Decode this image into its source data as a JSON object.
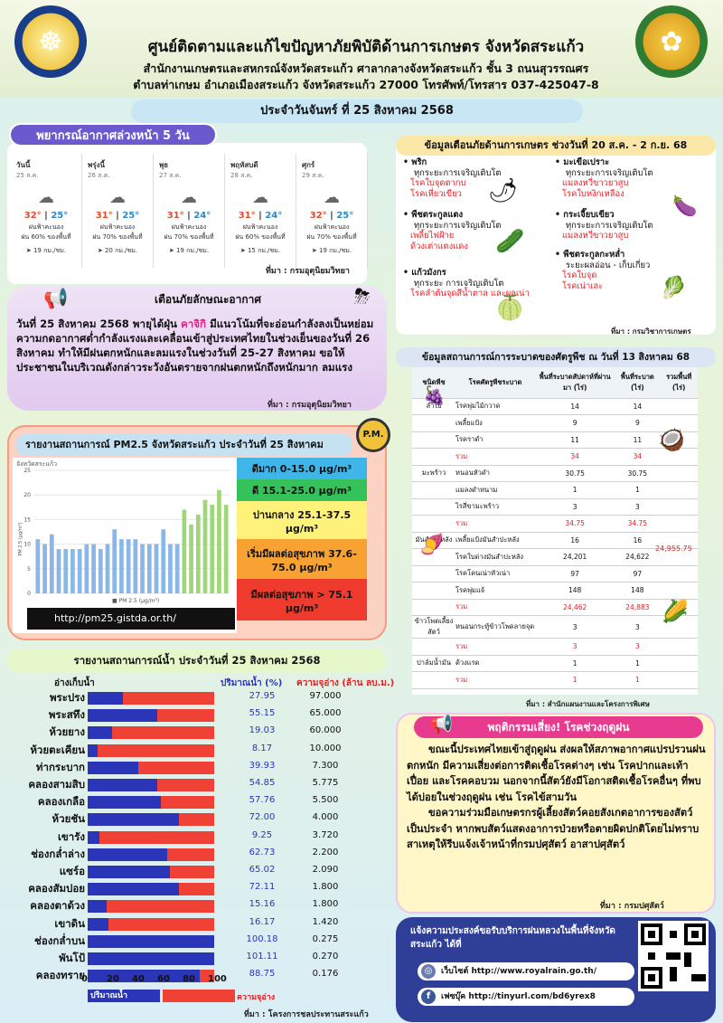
{
  "header": {
    "title": "ศูนย์ติดตามและแก้ไขปัญหาภัยพิบัติด้านการเกษตร จังหวัดสระแก้ว",
    "line1": "สำนักงานเกษตรและสหกรณ์จังหวัดสระแก้ว ศาลากลางจังหวัดสระแก้ว ชั้น 3 ถนนสุวรรณศร",
    "line2": "ตำบลท่าเกษม อำเภอเมืองสระแก้ว จังหวัดสระแก้ว 27000 โทรศัพท์/โทรสาร 037-425047-8"
  },
  "date": "ประจำวันจันทร์ ที่ 25 สิงหาคม 2568",
  "forecast": {
    "title": "พยากรณ์อากาศล่วงหน้า 5 วัน",
    "source": "ที่มา : กรมอุตุนิยมวิทยา",
    "days": [
      {
        "name": "วันนี้",
        "date": "25 ส.ค.",
        "hi": "32°",
        "lo": "25°",
        "desc": "ฝนฟ้าคะนอง",
        "rain": "ฝน 60% ของพื้นที่",
        "wind": "19 กม./ชม."
      },
      {
        "name": "พรุ่งนี้",
        "date": "26 ส.ค.",
        "hi": "31°",
        "lo": "25°",
        "desc": "ฝนฟ้าคะนอง",
        "rain": "ฝน 70% ของพื้นที่",
        "wind": "20 กม./ชม."
      },
      {
        "name": "พุธ",
        "date": "27 ส.ค.",
        "hi": "31°",
        "lo": "24°",
        "desc": "ฝนฟ้าคะนอง",
        "rain": "ฝน 70% ของพื้นที่",
        "wind": "19 กม./ชม."
      },
      {
        "name": "พฤหัสบดี",
        "date": "28 ส.ค.",
        "hi": "31°",
        "lo": "24°",
        "desc": "ฝนฟ้าคะนอง",
        "rain": "ฝน 60% ของพื้นที่",
        "wind": "15 กม./ชม."
      },
      {
        "name": "ศุกร์",
        "date": "29 ส.ค.",
        "hi": "32°",
        "lo": "25°",
        "desc": "ฝนฟ้าคะนอง",
        "rain": "ฝน 70% ของพื้นที่",
        "wind": "19 กม./ชม."
      }
    ]
  },
  "warning": {
    "title": "เตือนภัยลักษณะอากาศ",
    "pre": "วันที่ 25 สิงหาคม 2568 พายุได้ฝุ่น ",
    "storm": "คาจิกิ",
    "post": " มีแนวโน้มที่จะอ่อนกำลังลงเป็นหย่อมความกดอากาศต่ำกำลังแรงและเคลื่อนเข้าสู่ประเทศไทยในช่วงเย็นของวันที่ 26 สิงหาคม ทำให้มีฝนตกหนักและลมแรงในช่วงวันที่ 25-27 สิงหาคม ขอให้ประชาชนในบริเวณดังกล่าวระวังอันตรายจากฝนตกหนักถึงหนักมาก ลมแรง",
    "source": "ที่มา : กรมอุตุนิยมวิทยา"
  },
  "pm": {
    "title": "รายงานสถานการณ์ PM2.5 จังหวัดสระแก้ว ประจำวันที่ 25 สิงหาคม 2568",
    "badge": "P.M.",
    "url": "http://pm25.gistda.or.th/",
    "chart_caption": "จังหวัดสระแก้ว",
    "legend": "PM 2.5 (μg/m³)",
    "levels": [
      {
        "label": "ดีมาก 0-15.0 μg/m³",
        "color": "#3fb6ea"
      },
      {
        "label": "ดี 15.1-25.0 μg/m³",
        "color": "#36c25a"
      },
      {
        "label": "ปานกลาง 25.1-37.5 μg/m³",
        "color": "#fff27a"
      },
      {
        "label": "เริ่มมีผลต่อสุขภาพ 37.6-75.0 μg/m³",
        "color": "#f7a233"
      },
      {
        "label": "มีผลต่อสุขภาพ > 75.1 μg/m³",
        "color": "#ef3b2d"
      }
    ]
  },
  "chart_data": {
    "type": "bar",
    "title": "จังหวัดสระแก้ว",
    "ylim": [
      0,
      25
    ],
    "ylabel": "PM 2.5 (µg/m³)",
    "yticks": [
      0,
      5,
      10,
      15,
      20,
      25
    ],
    "values": [
      11,
      10,
      12,
      9,
      9,
      9,
      9,
      10,
      10,
      9,
      10,
      13,
      11,
      11,
      11,
      10,
      10,
      10,
      13,
      10,
      10,
      17,
      14,
      16,
      19,
      18,
      21,
      18
    ],
    "series": [
      {
        "name": "PM 2.5 (µg/m³)"
      }
    ]
  },
  "water": {
    "title": "รายงานสถานการณ์น้ำ ประจำวันที่ 25 สิงหาคม 2568",
    "col_name": "อ่างเก็บน้ำ",
    "col_pct": "ปริมาณน้ำ (%)",
    "col_cap": "ความจุอ่าง (ล้าน ลบ.ม.)",
    "legend_volume": "ปริมาณน้ำ",
    "legend_capacity": "ความจุอ่าง",
    "axis": [
      "0",
      "20",
      "40",
      "60",
      "80",
      "100"
    ],
    "source": "ที่มา : โครงการชลประทานสระแก้ว",
    "dams": [
      {
        "name": "พระปรง",
        "pct": "27.95",
        "v": 27.95,
        "cap": "97.000"
      },
      {
        "name": "พระสทึง",
        "pct": "55.15",
        "v": 55.15,
        "cap": "65.000"
      },
      {
        "name": "ห้วยยาง",
        "pct": "19.03",
        "v": 19.03,
        "cap": "60.000"
      },
      {
        "name": "ห้วยตะเคียน",
        "pct": "8.17",
        "v": 8.17,
        "cap": "10.000"
      },
      {
        "name": "ท่ากระบาก",
        "pct": "39.93",
        "v": 39.93,
        "cap": "7.300"
      },
      {
        "name": "คลองสามสิบ",
        "pct": "54.85",
        "v": 54.85,
        "cap": "5.775"
      },
      {
        "name": "คลองเกลือ",
        "pct": "57.76",
        "v": 57.76,
        "cap": "5.500"
      },
      {
        "name": "ห้วยชัน",
        "pct": "72.00",
        "v": 72.0,
        "cap": "4.000"
      },
      {
        "name": "เขารัง",
        "pct": "9.25",
        "v": 9.25,
        "cap": "3.720"
      },
      {
        "name": "ช่องกล่ำล่าง",
        "pct": "62.73",
        "v": 62.73,
        "cap": "2.200"
      },
      {
        "name": "แซร์อ",
        "pct": "65.02",
        "v": 65.02,
        "cap": "2.090"
      },
      {
        "name": "คลองสัมปอย",
        "pct": "72.11",
        "v": 72.11,
        "cap": "1.800"
      },
      {
        "name": "คลองตาด้วง",
        "pct": "15.16",
        "v": 15.16,
        "cap": "1.800"
      },
      {
        "name": "เขาดิน",
        "pct": "16.17",
        "v": 16.17,
        "cap": "1.420"
      },
      {
        "name": "ช่องกล่ำบน",
        "pct": "100.18",
        "v": 100.18,
        "cap": "0.275"
      },
      {
        "name": "พันโป้",
        "pct": "101.11",
        "v": 101.11,
        "cap": "0.270"
      },
      {
        "name": "คลองทราย",
        "pct": "88.75",
        "v": 88.75,
        "cap": "0.176"
      }
    ]
  },
  "alerts": {
    "title": "ข้อมูลเตือนภัยด้านการเกษตร ช่วงวันที่ 20 ส.ค. - 2 ก.ย. 68",
    "source": "ที่มา : กรมวิชาการเกษตร",
    "left": [
      {
        "crop": "พริก",
        "stage": "ทุกระยะการเจริญเติบโต",
        "risks": [
          "โรคใบจุดตากบ",
          "โรคเหี่ยวเขียว"
        ]
      },
      {
        "crop": "พืชตระกูลแตง",
        "stage": "ทุกระยะการเจริญเติบโต",
        "risks": [
          "เพลี้ยไฟฝ้าย",
          "ด้วงเต่าแตงแดง"
        ]
      },
      {
        "crop": "แก้วมังกร",
        "stage": "ทุกระยะ การเจริญเติบโต",
        "risks": [
          "โรคลำต้นจุดสีน้ำตาล และผลเน่า"
        ]
      }
    ],
    "right": [
      {
        "crop": "มะเขือเปราะ",
        "stage": "ทุกระยะการเจริญเติบโต",
        "risks": [
          "แมลงหวี่ขาวยาสูบ",
          "โรคใบหงิกเหลือง"
        ]
      },
      {
        "crop": "กระเจี๊ยบเขียว",
        "stage": "ทุกระยะการเจริญเติบโต",
        "risks": [
          "แมลงหวี่ขาวยาสูบ"
        ]
      },
      {
        "crop": "พืชตระกูลกะหล่ำ",
        "stage": "ระยะผลอ่อน - เก็บเกี่ยว",
        "risks": [
          "โรคใบจุด",
          "โรคเน่าเละ"
        ]
      }
    ]
  },
  "pest": {
    "title": "ข้อมูลสถานการณ์การระบาดของศัตรูพืช ณ วันที่ 13 สิงหาคม 68",
    "source": "ที่มา : สำนักแผนงานและโครงการพิเศษ",
    "head": [
      "ชนิดพืช",
      "โรคศัตรูพืชระบาด",
      "พื้นที่ระบาดสัปดาห์ที่ผ่านมา (ไร่)",
      "พื้นที่ระบาด (ไร่)",
      "รวมพื้นที่ (ไร่)"
    ],
    "total": "24,955.75",
    "rows": [
      {
        "crop": "ลำไย",
        "pest": "โรคพุ่มไม้กวาด",
        "a": "14",
        "b": "14"
      },
      {
        "crop": "",
        "pest": "เพลี้ยแป้ง",
        "a": "9",
        "b": "9"
      },
      {
        "crop": "",
        "pest": "โรคราดำ",
        "a": "11",
        "b": "11"
      },
      {
        "crop": "",
        "pest": "รวม",
        "a": "34",
        "b": "34",
        "sum": true
      },
      {
        "crop": "มะพร้าว",
        "pest": "หนอนหัวดำ",
        "a": "30.75",
        "b": "30.75"
      },
      {
        "crop": "",
        "pest": "แมลงดำหนาม",
        "a": "1",
        "b": "1"
      },
      {
        "crop": "",
        "pest": "ไรสี่ขามะพร้าว",
        "a": "3",
        "b": "3"
      },
      {
        "crop": "",
        "pest": "รวม",
        "a": "34.75",
        "b": "34.75",
        "sum": true
      },
      {
        "crop": "มันสำปะหลัง",
        "pest": "เพลี้ยแป้งมันสำปะหลัง",
        "a": "16",
        "b": "16"
      },
      {
        "crop": "",
        "pest": "โรคใบด่างมันสำปะหลัง",
        "a": "24,201",
        "b": "24,622"
      },
      {
        "crop": "",
        "pest": "โรคโคนเน่าหัวเน่า",
        "a": "97",
        "b": "97"
      },
      {
        "crop": "",
        "pest": "โรคพุ่มแจ้",
        "a": "148",
        "b": "148"
      },
      {
        "crop": "",
        "pest": "รวม",
        "a": "24,462",
        "b": "24,883",
        "sum": true
      },
      {
        "crop": "ข้าวโพดเลี้ยงสัตว์",
        "pest": "หนอนกระทู้ข้าวโพดลายจุด",
        "a": "3",
        "b": "3"
      },
      {
        "crop": "",
        "pest": "รวม",
        "a": "3",
        "b": "3",
        "sum": true
      },
      {
        "crop": "ปาล์มน้ำมัน",
        "pest": "ด้วงแรด",
        "a": "1",
        "b": "1"
      },
      {
        "crop": "",
        "pest": "รวม",
        "a": "1",
        "b": "1",
        "sum": true
      }
    ]
  },
  "behavior": {
    "title": "พฤติกรรมเสี่ยง! โรคช่วงฤดูฝน",
    "p1": "ขณะนี้ประเทศไทยเข้าสู่ฤดูฝน ส่งผลให้สภาพอากาศแปรปรวนฝนตกหนัก มีความเสี่ยงต่อการติดเชื้อโรคต่างๆ เช่น โรคปากและเท้าเปื่อย และโรคคอบวม นอกจากนี้สัตว์ยังมีโอกาสติดเชื้อโรคอื่นๆ ที่พบได้บ่อยในช่วงฤดูฝน เช่น โรคไข้สามวัน",
    "p2": "ขอความร่วมมือเกษตรกรผู้เลี้ยงสัตว์คอยสังเกตอาการของสัตว์ เป็นประจำ หากพบสัตว์แสดงอาการป่วยหรือตายผิดปกติโดยไม่ทราบสาเหตุให้รีบแจ้งเจ้าหน้าที่กรมปศุสัตว์ อาสาปศุสัตว์",
    "source": "ที่มา : กรมปศุสัตว์"
  },
  "rain": {
    "title": "แจ้งความประสงค์ขอรับบริการฝนหลวงในพื้นที่จังหวัดสระแก้ว ได้ที่",
    "web": "เว็บไซต์ http://www.royalrain.go.th/",
    "fb": "เฟซบุ๊ค http://tinyurl.com/bd6yrex8"
  }
}
